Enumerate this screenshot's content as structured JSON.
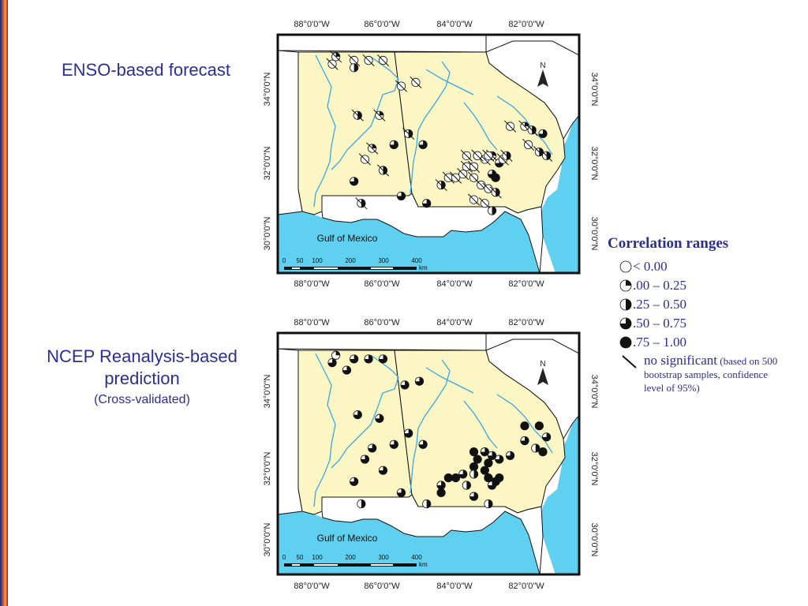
{
  "titles": {
    "enso": "ENSO-based forecast",
    "ncep_line1": "NCEP Reanalysis-based",
    "ncep_line2": "prediction",
    "ncep_sub": "(Cross-validated)"
  },
  "map_labels": {
    "lon_ticks": [
      "88°0'0\"W",
      "86°0'0\"W",
      "84°0'0\"W",
      "82°0'0\"W"
    ],
    "lat_ticks": [
      "34°0'0\"N",
      "32°0'0\"N",
      "30°0'0\"N"
    ],
    "gulf": "Gulf of Mexico",
    "scale_numbers": [
      "0",
      "50",
      "100",
      "200",
      "300",
      "400"
    ],
    "scale_unit": "km",
    "north": "N"
  },
  "legend": {
    "title": "Correlation ranges",
    "rows": [
      {
        "label": "< 0.00",
        "fill": 0
      },
      {
        "label": ".00 – 0.25",
        "fill": 0.25
      },
      {
        "label": ".25 – 0.50",
        "fill": 0.5
      },
      {
        "label": ".50 – 0.75",
        "fill": 0.75
      },
      {
        "label": ".75 – 1.00",
        "fill": 1
      }
    ],
    "no_significant": "no significant",
    "note": "(based on 500 bootstrap samples, confidence level of 95%)"
  },
  "colors": {
    "land": "#fbf6c4",
    "other_land": "#ffffff",
    "water": "#5fd0ef",
    "river": "#3aa8e0",
    "label": "#2b2f94"
  },
  "stations": {
    "enso": [
      [
        -87.8,
        35.0,
        0.25,
        1
      ],
      [
        -87.3,
        34.9,
        0,
        1
      ],
      [
        -86.9,
        34.9,
        0,
        1
      ],
      [
        -86.5,
        34.9,
        0,
        1
      ],
      [
        -87.9,
        34.8,
        0,
        1
      ],
      [
        -87.3,
        34.7,
        0.5,
        0
      ],
      [
        -86.0,
        34.2,
        0,
        1
      ],
      [
        -85.6,
        34.3,
        0,
        1
      ],
      [
        -87.2,
        33.4,
        0.5,
        1
      ],
      [
        -86.6,
        33.4,
        0.25,
        1
      ],
      [
        -85.8,
        32.9,
        0.5,
        1
      ],
      [
        -86.2,
        32.6,
        0.75,
        0
      ],
      [
        -85.4,
        32.6,
        0.75,
        0
      ],
      [
        -86.8,
        32.5,
        0.25,
        1
      ],
      [
        -87.0,
        32.2,
        0,
        1
      ],
      [
        -86.5,
        31.9,
        0.5,
        1
      ],
      [
        -87.3,
        31.6,
        0.75,
        0
      ],
      [
        -87.1,
        31.0,
        0.5,
        1
      ],
      [
        -86.0,
        31.2,
        0.75,
        0
      ],
      [
        -85.3,
        31.0,
        0.75,
        0
      ],
      [
        -84.9,
        31.5,
        0.5,
        1
      ],
      [
        -84.7,
        31.7,
        0,
        1
      ],
      [
        -84.5,
        31.7,
        0,
        1
      ],
      [
        -84.3,
        31.8,
        0,
        1
      ],
      [
        -84.0,
        31.7,
        0,
        1
      ],
      [
        -84.2,
        32.0,
        0,
        1
      ],
      [
        -84.0,
        32.0,
        0,
        1
      ],
      [
        -83.9,
        32.3,
        0,
        1
      ],
      [
        -83.7,
        32.2,
        0,
        1
      ],
      [
        -83.5,
        32.3,
        0.25,
        1
      ],
      [
        -83.3,
        32.1,
        0.75,
        0
      ],
      [
        -83.5,
        31.8,
        0.75,
        0
      ],
      [
        -83.4,
        31.7,
        1,
        0
      ],
      [
        -83.8,
        31.5,
        0,
        1
      ],
      [
        -83.6,
        31.4,
        0,
        1
      ],
      [
        -83.4,
        31.3,
        0.5,
        1
      ],
      [
        -84.0,
        31.1,
        0,
        1
      ],
      [
        -83.7,
        31.0,
        0,
        1
      ],
      [
        -83.5,
        30.8,
        0.5,
        0
      ],
      [
        -83.9,
        32.3,
        0,
        1
      ],
      [
        -83.6,
        32.3,
        0,
        1
      ],
      [
        -83.2,
        32.2,
        0,
        1
      ],
      [
        -83.1,
        32.3,
        0.5,
        1
      ],
      [
        -83.0,
        33.1,
        0,
        1
      ],
      [
        -82.6,
        33.1,
        0.25,
        1
      ],
      [
        -82.4,
        33.0,
        0.5,
        1
      ],
      [
        -82.1,
        32.9,
        0.75,
        0
      ],
      [
        -82.5,
        32.6,
        0,
        1
      ],
      [
        -82.2,
        32.4,
        0.5,
        1
      ],
      [
        -82.0,
        32.3,
        0.5,
        1
      ],
      [
        -84.2,
        32.3,
        0,
        1
      ]
    ],
    "ncep": [
      [
        -87.8,
        35.0,
        0.25,
        0
      ],
      [
        -87.3,
        34.9,
        0.75,
        0
      ],
      [
        -86.9,
        34.9,
        0.75,
        0
      ],
      [
        -86.5,
        34.9,
        0.75,
        0
      ],
      [
        -87.9,
        34.8,
        0.75,
        0
      ],
      [
        -87.5,
        34.6,
        0.75,
        0
      ],
      [
        -85.9,
        34.2,
        0.75,
        0
      ],
      [
        -85.5,
        34.3,
        0.75,
        0
      ],
      [
        -87.2,
        33.4,
        0.75,
        0
      ],
      [
        -86.6,
        33.3,
        0.75,
        0
      ],
      [
        -85.8,
        32.9,
        0.75,
        0
      ],
      [
        -86.2,
        32.6,
        0.75,
        0
      ],
      [
        -85.4,
        32.6,
        0.75,
        0
      ],
      [
        -86.8,
        32.5,
        0.75,
        0
      ],
      [
        -87.0,
        32.2,
        0.75,
        0
      ],
      [
        -86.5,
        31.9,
        0.75,
        0
      ],
      [
        -87.3,
        31.6,
        0.75,
        0
      ],
      [
        -87.1,
        31.0,
        0.5,
        0
      ],
      [
        -86.0,
        31.3,
        0.75,
        0
      ],
      [
        -85.3,
        31.0,
        0.5,
        0
      ],
      [
        -84.9,
        31.5,
        0.75,
        0
      ],
      [
        -84.7,
        31.7,
        1,
        0
      ],
      [
        -84.5,
        31.7,
        1,
        0
      ],
      [
        -84.3,
        31.8,
        0.75,
        0
      ],
      [
        -84.0,
        32.4,
        1,
        0
      ],
      [
        -83.7,
        32.4,
        0.75,
        0
      ],
      [
        -83.5,
        32.3,
        0.75,
        0
      ],
      [
        -83.3,
        32.2,
        0.75,
        0
      ],
      [
        -83.0,
        32.3,
        0.75,
        0
      ],
      [
        -83.9,
        32.2,
        1,
        0
      ],
      [
        -83.6,
        32.1,
        1,
        0
      ],
      [
        -84.0,
        32.0,
        1,
        0
      ],
      [
        -83.7,
        31.9,
        1,
        0
      ],
      [
        -84.0,
        31.8,
        0.5,
        0
      ],
      [
        -83.6,
        31.7,
        1,
        0
      ],
      [
        -83.4,
        31.6,
        1,
        0
      ],
      [
        -83.3,
        31.7,
        1,
        0
      ],
      [
        -83.5,
        31.5,
        0.75,
        0
      ],
      [
        -84.2,
        31.5,
        0.5,
        0
      ],
      [
        -84.0,
        31.2,
        0.75,
        0
      ],
      [
        -83.6,
        31.0,
        0.5,
        0
      ],
      [
        -82.6,
        33.1,
        1,
        0
      ],
      [
        -82.2,
        33.1,
        1,
        0
      ],
      [
        -82.0,
        32.8,
        0.75,
        0
      ],
      [
        -82.6,
        32.7,
        0.75,
        0
      ],
      [
        -82.3,
        32.5,
        0.5,
        0
      ],
      [
        -82.1,
        32.4,
        1,
        0
      ],
      [
        -84.9,
        31.3,
        1,
        0
      ]
    ]
  }
}
